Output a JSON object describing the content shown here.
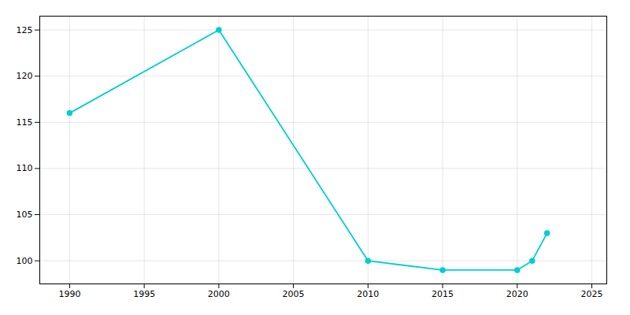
{
  "chart_data": {
    "type": "line",
    "x": [
      1990,
      2000,
      2010,
      2015,
      2020,
      2021,
      2022
    ],
    "values": [
      116,
      125,
      100,
      99,
      99,
      100,
      103
    ],
    "color": "#00CED1",
    "marker": "circle",
    "xlim": [
      1988,
      2026
    ],
    "ylim": [
      97.5,
      126.5
    ],
    "xticks": [
      1990,
      1995,
      2000,
      2005,
      2010,
      2015,
      2020,
      2025
    ],
    "yticks": [
      100,
      105,
      110,
      115,
      120,
      125
    ],
    "grid": true
  }
}
